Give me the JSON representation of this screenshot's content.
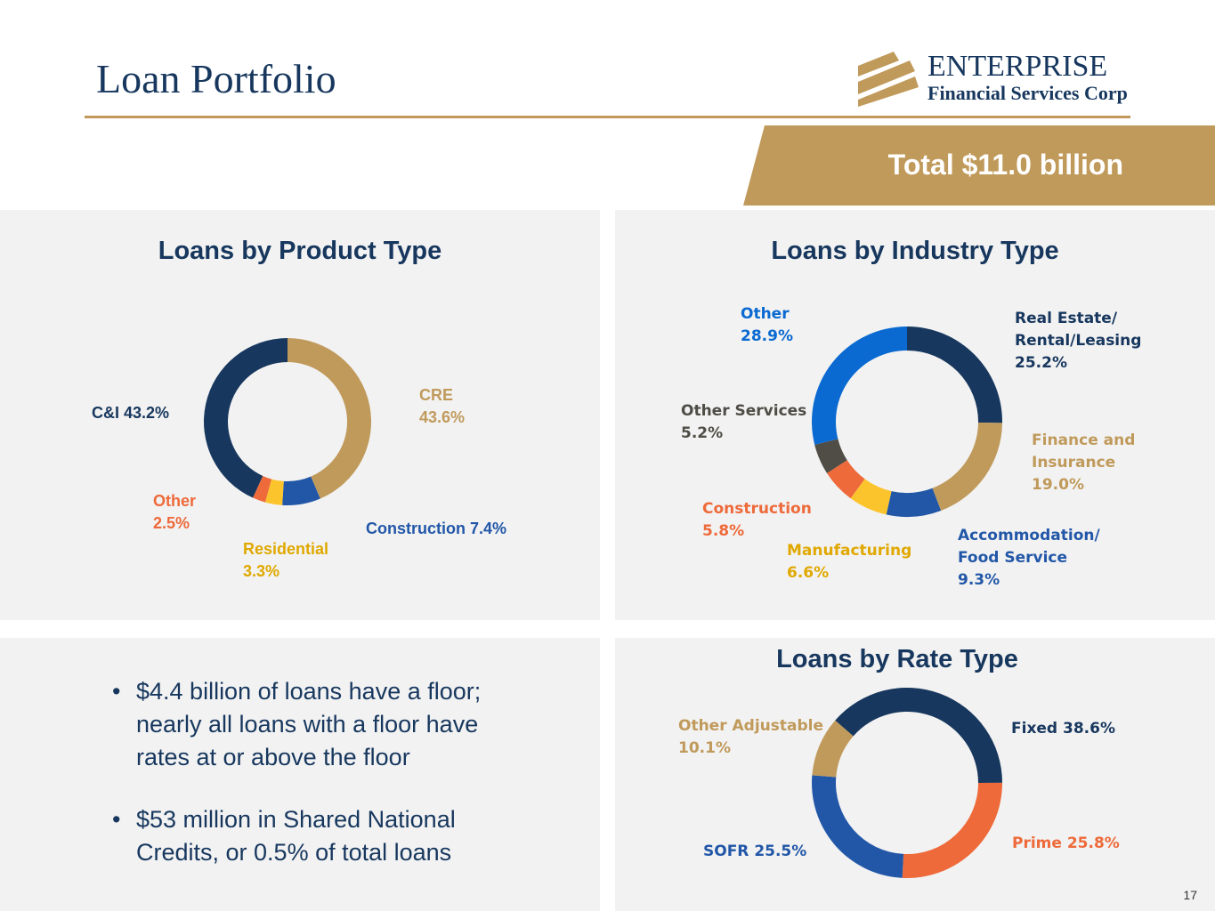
{
  "header": {
    "title": "Loan Portfolio",
    "total": "Total $11.0 billion",
    "logo_line1": "ENTERPRISE",
    "logo_line2": "Financial Services Corp"
  },
  "bullets": [
    "$4.4 billion of loans have a floor; nearly all loans with a floor have rates at or above the floor",
    "$53 million in Shared National Credits, or 0.5% of total loans"
  ],
  "page_number": "17",
  "chart_data": [
    {
      "type": "pie",
      "donut": true,
      "title": "Loans by Product Type",
      "unit": "%",
      "slices": [
        {
          "name": "CRE",
          "value": 43.6,
          "label": "CRE\n43.6%",
          "color": "#c09a5b"
        },
        {
          "name": "Construction",
          "value": 7.4,
          "label": "Construction 7.4%",
          "color": "#2257a8"
        },
        {
          "name": "Residential",
          "value": 3.3,
          "label": "Residential\n3.3%",
          "color": "#fcc42c",
          "text_color": "#e0a800"
        },
        {
          "name": "Other",
          "value": 2.5,
          "label": "Other\n2.5%",
          "color": "#ee6a3a"
        },
        {
          "name": "C&I",
          "value": 43.2,
          "label": "C&I 43.2%",
          "color": "#17375e"
        }
      ]
    },
    {
      "type": "pie",
      "donut": true,
      "title": "Loans by Industry Type",
      "unit": "%",
      "slices": [
        {
          "name": "Real Estate/Rental/Leasing",
          "value": 25.2,
          "label": "Real Estate/\nRental/Leasing\n25.2%",
          "color": "#17375e"
        },
        {
          "name": "Finance and Insurance",
          "value": 19.0,
          "label": "Finance and\nInsurance\n19.0%",
          "color": "#c09a5b"
        },
        {
          "name": "Accommodation/Food Service",
          "value": 9.3,
          "label": "Accommodation/\nFood Service\n9.3%",
          "color": "#2257a8"
        },
        {
          "name": "Manufacturing",
          "value": 6.6,
          "label": "Manufacturing\n6.6%",
          "color": "#fcc42c",
          "text_color": "#e0a800"
        },
        {
          "name": "Construction",
          "value": 5.8,
          "label": "Construction\n5.8%",
          "color": "#ee6a3a"
        },
        {
          "name": "Other Services",
          "value": 5.2,
          "label": "Other Services\n5.2%",
          "color": "#4f4d46"
        },
        {
          "name": "Other",
          "value": 28.9,
          "label": "Other\n28.9%",
          "color": "#0a6ad1"
        }
      ]
    },
    {
      "type": "pie",
      "donut": true,
      "title": "Loans by Rate Type",
      "unit": "%",
      "start_angle_deg": -49,
      "slices": [
        {
          "name": "Fixed",
          "value": 38.6,
          "label": "Fixed 38.6%",
          "color": "#17375e"
        },
        {
          "name": "Prime",
          "value": 25.8,
          "label": "Prime 25.8%",
          "color": "#ee6a3a"
        },
        {
          "name": "SOFR",
          "value": 25.5,
          "label": "SOFR 25.5%",
          "color": "#2257a8"
        },
        {
          "name": "Other Adjustable",
          "value": 10.1,
          "label": "Other Adjustable\n10.1%",
          "color": "#c09a5b"
        }
      ]
    }
  ]
}
